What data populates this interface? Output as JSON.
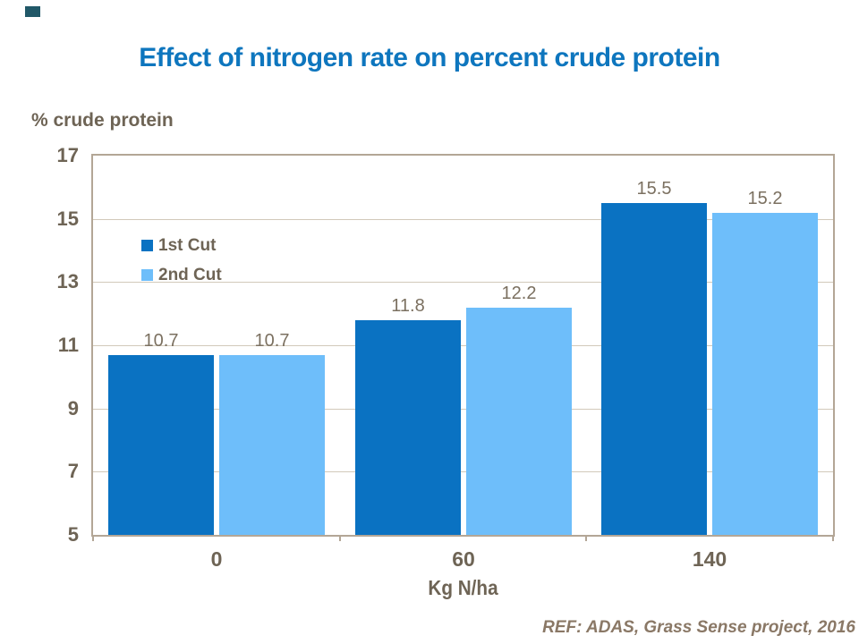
{
  "slide": {
    "title": "Effect of nitrogen rate on percent crude protein",
    "footer": "REF: ADAS, Grass Sense project, 2016"
  },
  "chart_data": {
    "type": "bar",
    "title": "Effect of nitrogen rate on percent crude protein",
    "ylabel": "% crude protein",
    "xlabel": "Kg N/ha",
    "categories": [
      "0",
      "60",
      "140"
    ],
    "series": [
      {
        "name": "1st Cut",
        "color": "#0A72C2",
        "values": [
          10.7,
          11.8,
          15.5
        ]
      },
      {
        "name": "2nd Cut",
        "color": "#6EBEFA",
        "values": [
          10.7,
          12.2,
          15.2
        ]
      }
    ],
    "ylim": [
      5,
      17
    ],
    "y_ticks": [
      5,
      7,
      9,
      11,
      13,
      15,
      17
    ],
    "grid": true,
    "legend_position": "inside-upper-left",
    "value_labels": true
  },
  "theme": {
    "title_color": "#0E76BE",
    "axis_text_color": "#6E6455",
    "value_label_color": "#7B7060",
    "footer_color": "#8A7866",
    "plot_border_color": "#B3A696",
    "gridline_color": "#D2C9BA",
    "corner_accent_color": "#215868"
  }
}
